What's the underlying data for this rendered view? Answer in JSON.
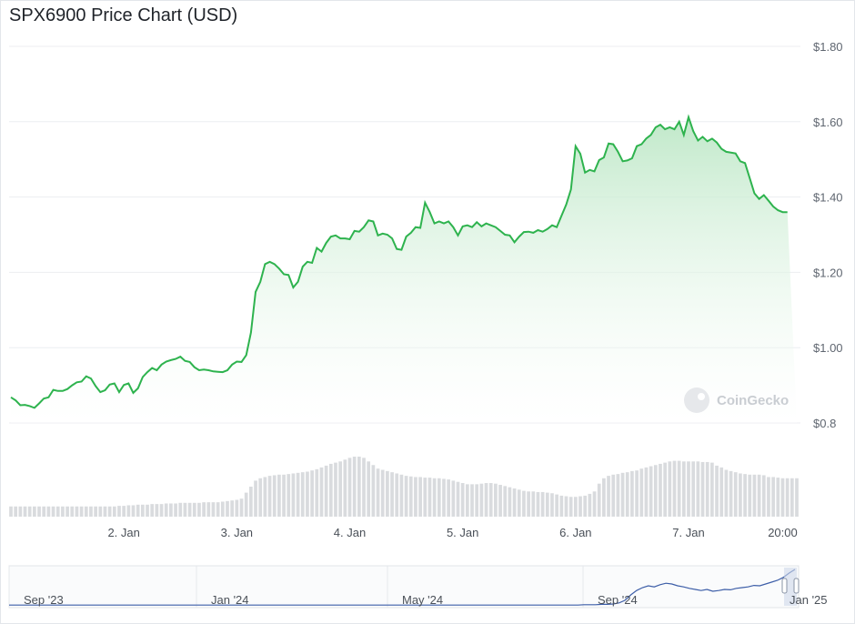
{
  "title": "SPX6900 Price Chart (USD)",
  "watermark": "CoinGecko",
  "colors": {
    "line": "#2eb34e",
    "fill_top": "#b9e6c3",
    "fill_bottom": "#ffffff",
    "volume": "#d9dbde",
    "grid": "#eceef1",
    "navigator": "#3d5ea8"
  },
  "chart_data": {
    "type": "area",
    "ylim": [
      0.8,
      1.8
    ],
    "yticks": [
      {
        "value": 0.8,
        "label": "$0.8"
      },
      {
        "value": 1.0,
        "label": "$1.00"
      },
      {
        "value": 1.2,
        "label": "$1.20"
      },
      {
        "value": 1.4,
        "label": "$1.40"
      },
      {
        "value": 1.6,
        "label": "$1.60"
      },
      {
        "value": 1.8,
        "label": "$1.80"
      }
    ],
    "xticks": [
      {
        "t": 24,
        "label": "2. Jan"
      },
      {
        "t": 48,
        "label": "3. Jan"
      },
      {
        "t": 72,
        "label": "4. Jan"
      },
      {
        "t": 96,
        "label": "5. Jan"
      },
      {
        "t": 120,
        "label": "6. Jan"
      },
      {
        "t": 144,
        "label": "7. Jan"
      },
      {
        "t": 164,
        "label": "20:00"
      }
    ],
    "x_hours": [
      0,
      1,
      2,
      3,
      4,
      5,
      6,
      7,
      8,
      9,
      10,
      11,
      12,
      13,
      14,
      15,
      16,
      17,
      18,
      19,
      20,
      21,
      22,
      23,
      24,
      25,
      26,
      27,
      28,
      29,
      30,
      31,
      32,
      33,
      34,
      35,
      36,
      37,
      38,
      39,
      40,
      41,
      42,
      43,
      44,
      45,
      46,
      47,
      48,
      49,
      50,
      51,
      52,
      53,
      54,
      55,
      56,
      57,
      58,
      59,
      60,
      61,
      62,
      63,
      64,
      65,
      66,
      67,
      68,
      69,
      70,
      71,
      72,
      73,
      74,
      75,
      76,
      77,
      78,
      79,
      80,
      81,
      82,
      83,
      84,
      85,
      86,
      87,
      88,
      89,
      90,
      91,
      92,
      93,
      94,
      95,
      96,
      97,
      98,
      99,
      100,
      101,
      102,
      103,
      104,
      105,
      106,
      107,
      108,
      109,
      110,
      111,
      112,
      113,
      114,
      115,
      116,
      117,
      118,
      119,
      120,
      121,
      122,
      123,
      124,
      125,
      126,
      127,
      128,
      129,
      130,
      131,
      132,
      133,
      134,
      135,
      136,
      137,
      138,
      139,
      140,
      141,
      142,
      143,
      144,
      145,
      146,
      147,
      148,
      149,
      150,
      151,
      152,
      153,
      154,
      155,
      156,
      157,
      158,
      159,
      160,
      161,
      162,
      163,
      164,
      165,
      166,
      167
    ],
    "price": [
      0.868,
      0.86,
      0.847,
      0.848,
      0.845,
      0.84,
      0.852,
      0.865,
      0.868,
      0.888,
      0.885,
      0.885,
      0.89,
      0.9,
      0.908,
      0.91,
      0.924,
      0.918,
      0.898,
      0.882,
      0.887,
      0.902,
      0.905,
      0.882,
      0.901,
      0.905,
      0.88,
      0.892,
      0.922,
      0.935,
      0.946,
      0.94,
      0.955,
      0.963,
      0.967,
      0.97,
      0.976,
      0.965,
      0.962,
      0.948,
      0.94,
      0.942,
      0.94,
      0.937,
      0.936,
      0.935,
      0.94,
      0.955,
      0.963,
      0.962,
      0.98,
      1.04,
      1.148,
      1.175,
      1.222,
      1.228,
      1.222,
      1.21,
      1.195,
      1.193,
      1.16,
      1.175,
      1.215,
      1.228,
      1.225,
      1.265,
      1.255,
      1.278,
      1.295,
      1.298,
      1.29,
      1.29,
      1.288,
      1.31,
      1.308,
      1.32,
      1.338,
      1.335,
      1.298,
      1.303,
      1.3,
      1.29,
      1.262,
      1.26,
      1.295,
      1.305,
      1.32,
      1.318,
      1.385,
      1.36,
      1.33,
      1.335,
      1.33,
      1.335,
      1.32,
      1.298,
      1.322,
      1.325,
      1.32,
      1.333,
      1.322,
      1.33,
      1.325,
      1.32,
      1.31,
      1.3,
      1.298,
      1.28,
      1.295,
      1.307,
      1.308,
      1.305,
      1.312,
      1.308,
      1.315,
      1.325,
      1.32,
      1.35,
      1.38,
      1.42,
      1.535,
      1.515,
      1.465,
      1.472,
      1.468,
      1.498,
      1.505,
      1.542,
      1.54,
      1.52,
      1.495,
      1.497,
      1.503,
      1.535,
      1.54,
      1.555,
      1.565,
      1.585,
      1.592,
      1.58,
      1.585,
      1.58,
      1.6,
      1.565,
      1.612,
      1.575,
      1.55,
      1.56,
      1.548,
      1.555,
      1.545,
      1.528,
      1.52,
      1.518,
      1.516,
      1.495,
      1.49,
      1.45,
      1.41,
      1.395,
      1.405,
      1.39,
      1.375,
      1.365,
      1.36,
      1.36
    ],
    "volume_relative": [
      0.17,
      0.17,
      0.17,
      0.17,
      0.17,
      0.17,
      0.17,
      0.17,
      0.17,
      0.17,
      0.17,
      0.17,
      0.17,
      0.17,
      0.17,
      0.17,
      0.17,
      0.17,
      0.17,
      0.17,
      0.17,
      0.17,
      0.17,
      0.18,
      0.18,
      0.19,
      0.19,
      0.2,
      0.2,
      0.2,
      0.21,
      0.21,
      0.21,
      0.22,
      0.22,
      0.22,
      0.23,
      0.23,
      0.23,
      0.23,
      0.23,
      0.24,
      0.24,
      0.24,
      0.24,
      0.25,
      0.26,
      0.27,
      0.28,
      0.3,
      0.4,
      0.5,
      0.6,
      0.64,
      0.66,
      0.68,
      0.69,
      0.7,
      0.7,
      0.71,
      0.72,
      0.73,
      0.74,
      0.75,
      0.77,
      0.79,
      0.82,
      0.85,
      0.88,
      0.9,
      0.92,
      0.95,
      0.98,
      1.0,
      1.0,
      0.98,
      0.92,
      0.86,
      0.8,
      0.78,
      0.76,
      0.74,
      0.72,
      0.7,
      0.68,
      0.67,
      0.66,
      0.66,
      0.65,
      0.65,
      0.64,
      0.64,
      0.63,
      0.62,
      0.6,
      0.58,
      0.56,
      0.54,
      0.54,
      0.54,
      0.55,
      0.56,
      0.56,
      0.55,
      0.53,
      0.51,
      0.49,
      0.47,
      0.45,
      0.43,
      0.42,
      0.42,
      0.41,
      0.41,
      0.4,
      0.39,
      0.37,
      0.35,
      0.34,
      0.33,
      0.33,
      0.34,
      0.35,
      0.38,
      0.42,
      0.55,
      0.64,
      0.68,
      0.7,
      0.71,
      0.73,
      0.74,
      0.76,
      0.77,
      0.8,
      0.82,
      0.84,
      0.86,
      0.88,
      0.9,
      0.92,
      0.93,
      0.93,
      0.92,
      0.92,
      0.92,
      0.92,
      0.91,
      0.91,
      0.9,
      0.85,
      0.82,
      0.78,
      0.76,
      0.74,
      0.72,
      0.71,
      0.7,
      0.7,
      0.7,
      0.69,
      0.66,
      0.66,
      0.65,
      0.64,
      0.64,
      0.64,
      0.64
    ],
    "navigator_labels": [
      "Sep '23",
      "Jan '24",
      "May '24",
      "Sep '24",
      "Jan '25"
    ],
    "navigator_relative": [
      0.02,
      0.02,
      0.02,
      0.02,
      0.02,
      0.02,
      0.02,
      0.02,
      0.02,
      0.02,
      0.02,
      0.02,
      0.02,
      0.02,
      0.02,
      0.02,
      0.02,
      0.02,
      0.02,
      0.02,
      0.02,
      0.02,
      0.02,
      0.02,
      0.02,
      0.02,
      0.02,
      0.02,
      0.02,
      0.02,
      0.02,
      0.02,
      0.02,
      0.02,
      0.02,
      0.02,
      0.02,
      0.02,
      0.02,
      0.02,
      0.02,
      0.02,
      0.02,
      0.02,
      0.02,
      0.02,
      0.02,
      0.02,
      0.02,
      0.02,
      0.02,
      0.02,
      0.02,
      0.02,
      0.02,
      0.02,
      0.02,
      0.02,
      0.02,
      0.02,
      0.02,
      0.02,
      0.02,
      0.02,
      0.02,
      0.02,
      0.02,
      0.02,
      0.02,
      0.02,
      0.02,
      0.02,
      0.02,
      0.02,
      0.02,
      0.02,
      0.02,
      0.02,
      0.02,
      0.02,
      0.02,
      0.02,
      0.02,
      0.02,
      0.02,
      0.02,
      0.02,
      0.02,
      0.02,
      0.02,
      0.02,
      0.02,
      0.02,
      0.02,
      0.02,
      0.02,
      0.02,
      0.02,
      0.03,
      0.03,
      0.03,
      0.04,
      0.04,
      0.05,
      0.08,
      0.15,
      0.3,
      0.42,
      0.5,
      0.55,
      0.52,
      0.58,
      0.62,
      0.6,
      0.55,
      0.52,
      0.48,
      0.45,
      0.42,
      0.45,
      0.4,
      0.42,
      0.45,
      0.44,
      0.48,
      0.5,
      0.52,
      0.56,
      0.55,
      0.6,
      0.65,
      0.7,
      0.78,
      0.9,
      1.0
    ]
  }
}
